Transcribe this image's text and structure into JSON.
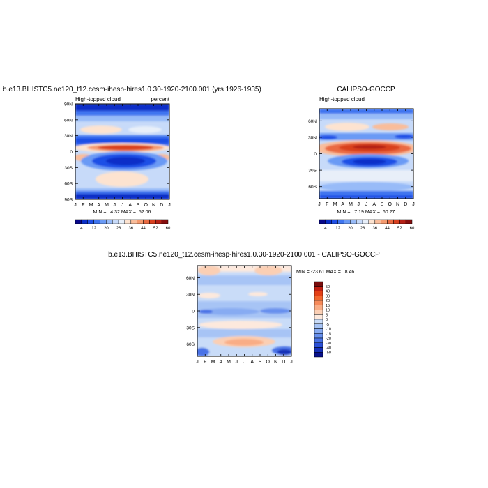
{
  "chart_data": [
    {
      "type": "heatmap",
      "title": "b.e13.BHISTC5.ne120_t12.cesm-ihesp-hires1.0.30-1920-2100.001 (yrs 1926-1935)",
      "left_label": "High-topped cloud",
      "right_label": "percent",
      "stats_text": "MIN =   4.32 MAX =  52.06",
      "x_ticks": [
        "J",
        "F",
        "M",
        "A",
        "M",
        "J",
        "J",
        "A",
        "S",
        "O",
        "N",
        "D",
        "J"
      ],
      "y_ticks": [
        "90N",
        "60N",
        "30N",
        "0",
        "30S",
        "60S",
        "90S"
      ],
      "y_tick_lats": [
        90,
        60,
        30,
        0,
        -30,
        -60,
        -90
      ],
      "ylim": [
        -90,
        90
      ],
      "xlim": [
        0,
        12
      ]
    },
    {
      "type": "heatmap",
      "title": "CALIPSO-GOCCP",
      "left_label": "High-topped cloud",
      "right_label": "",
      "stats_text": "MIN =   7.19 MAX =  60.27",
      "x_ticks": [
        "J",
        "F",
        "M",
        "A",
        "M",
        "J",
        "J",
        "A",
        "S",
        "O",
        "N",
        "D",
        "J"
      ],
      "y_ticks": [
        "60N",
        "30N",
        "0",
        "30S",
        "60S"
      ],
      "y_tick_lats": [
        60,
        30,
        0,
        -30,
        -60
      ],
      "ylim": [
        -82,
        82
      ],
      "xlim": [
        0,
        12
      ]
    },
    {
      "type": "heatmap",
      "title": "b.e13.BHISTC5.ne120_t12.cesm-ihesp-hires1.0.30-1920-2100.001 - CALIPSO-GOCCP",
      "left_label": "",
      "right_label": "",
      "stats_text": "MIN = -23.61 MAX =   8.46",
      "x_ticks": [
        "J",
        "F",
        "M",
        "A",
        "M",
        "J",
        "J",
        "A",
        "S",
        "O",
        "N",
        "D",
        "J"
      ],
      "y_ticks": [
        "60N",
        "30N",
        "0",
        "30S",
        "60S"
      ],
      "y_tick_lats": [
        60,
        30,
        0,
        -30,
        -60
      ],
      "ylim": [
        -82,
        82
      ],
      "xlim": [
        0,
        12
      ]
    }
  ],
  "colorbar_abs": {
    "labels": [
      "4",
      "12",
      "20",
      "28",
      "36",
      "44",
      "52",
      "60"
    ],
    "colors": [
      "#08088a",
      "#0a2fc8",
      "#1f4fe6",
      "#3f75f0",
      "#6a9af5",
      "#98bbf8",
      "#c7daf9",
      "#e8eff9",
      "#fde3d0",
      "#f9bd9b",
      "#f49a6f",
      "#ea6b42",
      "#d9401f",
      "#b52015",
      "#850d0d"
    ]
  },
  "colorbar_diff": {
    "labels": [
      "50",
      "40",
      "30",
      "20",
      "15",
      "10",
      "5",
      "0",
      "-5",
      "-10",
      "-15",
      "-20",
      "-30",
      "-40",
      "-50"
    ],
    "colors": [
      "#7a0c0c",
      "#c01f12",
      "#e44016",
      "#f2672e",
      "#f68a5a",
      "#f9ad86",
      "#fbcfb4",
      "#fde9dd",
      "#c9dcf8",
      "#a7c4f5",
      "#87abf2",
      "#6790ee",
      "#4872e6",
      "#2a50d8",
      "#1630b8",
      "#08108c"
    ]
  }
}
